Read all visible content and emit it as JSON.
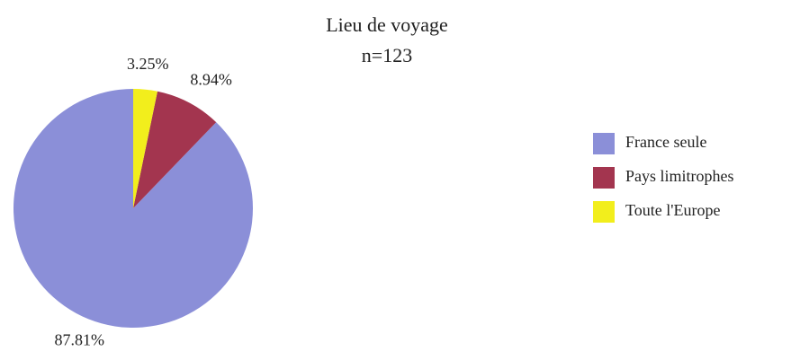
{
  "chart_data": {
    "type": "pie",
    "title": "Lieu de voyage",
    "subtitle": "n=123",
    "categories": [
      "France seule",
      "Pays limitrophes",
      "Toute l'Europe"
    ],
    "values": [
      87.81,
      8.94,
      3.25
    ],
    "value_labels": [
      "87.81%",
      "8.94%",
      "3.25%"
    ],
    "colors": [
      "#8b8fd8",
      "#a3354f",
      "#f2ee1c"
    ],
    "legend": "right"
  }
}
